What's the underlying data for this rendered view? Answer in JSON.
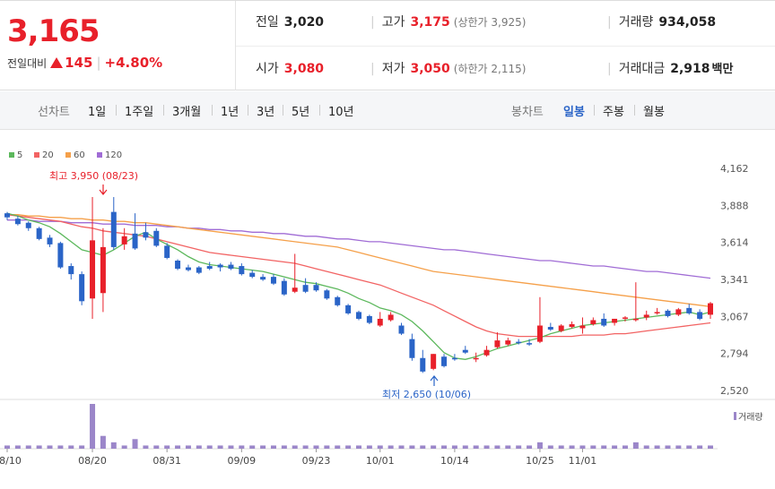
{
  "price": {
    "current": "3,165",
    "change_label": "전일대비",
    "change": "145",
    "change_pct": "+4.80%"
  },
  "summary": {
    "prev_close_label": "전일",
    "prev_close": "3,020",
    "high_label": "고가",
    "high": "3,175",
    "upper_limit": "(상한가 3,925)",
    "volume_label": "거래량",
    "volume": "934,058",
    "open_label": "시가",
    "open": "3,080",
    "low_label": "저가",
    "low": "3,050",
    "lower_limit": "(하한가 2,115)",
    "amount_label": "거래대금",
    "amount": "2,918",
    "amount_unit": "백만"
  },
  "tabs": {
    "line_label": "선차트",
    "line_items": [
      "1일",
      "1주일",
      "3개월",
      "1년",
      "3년",
      "5년",
      "10년"
    ],
    "candle_label": "봉차트",
    "candle_items": [
      "일봉",
      "주봉",
      "월봉"
    ],
    "active_candle": "일봉"
  },
  "colors": {
    "up": "#e8202a",
    "down": "#2a64c7",
    "ma5": "#5cb85c",
    "ma20": "#f26363",
    "ma60": "#f5a04a",
    "ma120": "#a06cd5",
    "volume": "#9b86c9"
  },
  "chart_data": {
    "type": "candlestick",
    "legend": [
      {
        "name": "5",
        "color": "#5cb85c"
      },
      {
        "name": "20",
        "color": "#f26363"
      },
      {
        "name": "60",
        "color": "#f5a04a"
      },
      {
        "name": "120",
        "color": "#a06cd5"
      }
    ],
    "y_ticks": [
      "4,162",
      "3,888",
      "3,614",
      "3,341",
      "3,067",
      "2,794",
      "2,520"
    ],
    "ylim": [
      2520,
      4162
    ],
    "x_ticks": [
      {
        "label": "08/10",
        "index": 0
      },
      {
        "label": "08/20",
        "index": 8
      },
      {
        "label": "08/31",
        "index": 15
      },
      {
        "label": "09/09",
        "index": 22
      },
      {
        "label": "09/23",
        "index": 29
      },
      {
        "label": "10/01",
        "index": 35
      },
      {
        "label": "10/14",
        "index": 42
      },
      {
        "label": "10/25",
        "index": 50
      },
      {
        "label": "11/01",
        "index": 54
      }
    ],
    "high_annotation": "최고 3,950 (08/23)",
    "low_annotation": "최저 2,650 (10/06)",
    "volume_legend": "거래량",
    "candles": [
      [
        3830,
        3840,
        3800,
        3780
      ],
      [
        3790,
        3810,
        3750,
        3740
      ],
      [
        3760,
        3770,
        3720,
        3700
      ],
      [
        3720,
        3730,
        3640,
        3630
      ],
      [
        3650,
        3670,
        3600,
        3580
      ],
      [
        3610,
        3620,
        3430,
        3420
      ],
      [
        3440,
        3460,
        3380,
        3340
      ],
      [
        3380,
        3400,
        3180,
        3150
      ],
      [
        3200,
        3950,
        3630,
        3050
      ],
      [
        3240,
        3720,
        3580,
        3100
      ],
      [
        3840,
        3950,
        3580,
        3560
      ],
      [
        3600,
        3720,
        3660,
        3560
      ],
      [
        3680,
        3830,
        3570,
        3560
      ],
      [
        3690,
        3760,
        3650,
        3630
      ],
      [
        3700,
        3720,
        3590,
        3580
      ],
      [
        3590,
        3610,
        3500,
        3490
      ],
      [
        3480,
        3490,
        3420,
        3410
      ],
      [
        3430,
        3450,
        3410,
        3400
      ],
      [
        3430,
        3440,
        3390,
        3380
      ],
      [
        3440,
        3470,
        3420,
        3410
      ],
      [
        3450,
        3460,
        3430,
        3400
      ],
      [
        3450,
        3470,
        3420,
        3410
      ],
      [
        3440,
        3460,
        3380,
        3370
      ],
      [
        3390,
        3410,
        3360,
        3350
      ],
      [
        3360,
        3380,
        3340,
        3330
      ],
      [
        3360,
        3380,
        3310,
        3300
      ],
      [
        3330,
        3350,
        3230,
        3220
      ],
      [
        3250,
        3530,
        3280,
        3240
      ],
      [
        3300,
        3350,
        3250,
        3240
      ],
      [
        3300,
        3320,
        3260,
        3250
      ],
      [
        3260,
        3270,
        3200,
        3190
      ],
      [
        3210,
        3220,
        3150,
        3140
      ],
      [
        3150,
        3160,
        3090,
        3080
      ],
      [
        3100,
        3110,
        3050,
        3040
      ],
      [
        3070,
        3080,
        3020,
        3010
      ],
      [
        3000,
        3100,
        3050,
        2990
      ],
      [
        3040,
        3100,
        3080,
        3030
      ],
      [
        3000,
        3020,
        2940,
        2930
      ],
      [
        2900,
        2940,
        2760,
        2740
      ],
      [
        2760,
        2820,
        2660,
        2650
      ],
      [
        2680,
        2790,
        2790,
        2670
      ],
      [
        2770,
        2790,
        2700,
        2690
      ],
      [
        2760,
        2790,
        2750,
        2740
      ],
      [
        2820,
        2850,
        2800,
        2790
      ],
      [
        2750,
        2800,
        2760,
        2730
      ],
      [
        2780,
        2850,
        2820,
        2770
      ],
      [
        2840,
        2950,
        2890,
        2830
      ],
      [
        2860,
        2910,
        2890,
        2850
      ],
      [
        2880,
        2900,
        2870,
        2860
      ],
      [
        2870,
        2900,
        2860,
        2850
      ],
      [
        2880,
        3210,
        3000,
        2870
      ],
      [
        2990,
        3020,
        2970,
        2960
      ],
      [
        2960,
        3010,
        3000,
        2950
      ],
      [
        2990,
        3030,
        3010,
        2980
      ],
      [
        2980,
        3060,
        3000,
        2940
      ],
      [
        3010,
        3060,
        3040,
        3000
      ],
      [
        3050,
        3090,
        3000,
        2990
      ],
      [
        3020,
        3050,
        3050,
        3000
      ],
      [
        3050,
        3070,
        3060,
        3030
      ],
      [
        3040,
        3320,
        3050,
        3030
      ],
      [
        3060,
        3110,
        3080,
        3040
      ],
      [
        3090,
        3130,
        3100,
        3080
      ],
      [
        3110,
        3120,
        3070,
        3060
      ],
      [
        3080,
        3130,
        3120,
        3070
      ],
      [
        3130,
        3160,
        3090,
        3080
      ],
      [
        3100,
        3120,
        3050,
        3040
      ],
      [
        3080,
        3175,
        3165,
        3050
      ]
    ],
    "ma5": [
      3830,
      3810,
      3780,
      3760,
      3730,
      3680,
      3620,
      3560,
      3540,
      3520,
      3560,
      3610,
      3660,
      3690,
      3640,
      3600,
      3560,
      3510,
      3470,
      3450,
      3440,
      3430,
      3420,
      3410,
      3400,
      3380,
      3360,
      3340,
      3320,
      3310,
      3290,
      3270,
      3240,
      3200,
      3170,
      3130,
      3110,
      3080,
      3030,
      2960,
      2880,
      2800,
      2760,
      2750,
      2770,
      2800,
      2830,
      2850,
      2870,
      2890,
      2910,
      2940,
      2960,
      2980,
      3000,
      3010,
      3020,
      3030,
      3040,
      3050,
      3060,
      3070,
      3080,
      3090,
      3100,
      3080,
      3100
    ],
    "ma20": [
      3820,
      3810,
      3800,
      3790,
      3780,
      3770,
      3750,
      3730,
      3720,
      3700,
      3690,
      3680,
      3670,
      3660,
      3640,
      3620,
      3600,
      3580,
      3560,
      3540,
      3530,
      3520,
      3510,
      3500,
      3490,
      3480,
      3470,
      3460,
      3440,
      3420,
      3400,
      3380,
      3360,
      3340,
      3320,
      3300,
      3270,
      3240,
      3210,
      3180,
      3150,
      3110,
      3070,
      3030,
      2990,
      2960,
      2940,
      2930,
      2920,
      2920,
      2920,
      2920,
      2920,
      2920,
      2930,
      2930,
      2930,
      2940,
      2940,
      2950,
      2960,
      2970,
      2980,
      2990,
      3000,
      3010,
      3020
    ],
    "ma60": [
      3820,
      3820,
      3810,
      3810,
      3800,
      3800,
      3790,
      3790,
      3780,
      3780,
      3770,
      3770,
      3760,
      3760,
      3750,
      3740,
      3730,
      3720,
      3710,
      3700,
      3690,
      3680,
      3670,
      3660,
      3650,
      3640,
      3630,
      3620,
      3610,
      3600,
      3590,
      3580,
      3560,
      3540,
      3520,
      3500,
      3480,
      3460,
      3440,
      3420,
      3400,
      3390,
      3380,
      3370,
      3360,
      3350,
      3340,
      3330,
      3320,
      3310,
      3300,
      3290,
      3280,
      3270,
      3260,
      3250,
      3240,
      3230,
      3220,
      3210,
      3200,
      3190,
      3180,
      3170,
      3160,
      3150,
      3140
    ],
    "ma120": [
      3780,
      3780,
      3780,
      3770,
      3770,
      3770,
      3760,
      3760,
      3760,
      3750,
      3750,
      3750,
      3740,
      3740,
      3740,
      3730,
      3730,
      3720,
      3720,
      3710,
      3710,
      3700,
      3700,
      3690,
      3690,
      3680,
      3680,
      3670,
      3660,
      3660,
      3650,
      3640,
      3640,
      3630,
      3620,
      3620,
      3610,
      3600,
      3590,
      3580,
      3570,
      3560,
      3560,
      3550,
      3540,
      3530,
      3520,
      3510,
      3500,
      3490,
      3480,
      3480,
      3470,
      3460,
      3450,
      3440,
      3440,
      3430,
      3420,
      3410,
      3400,
      3400,
      3390,
      3380,
      3370,
      3360,
      3350
    ],
    "volume": [
      1,
      1,
      1,
      1,
      1,
      1,
      1,
      1,
      14,
      4,
      2,
      1,
      3,
      1,
      1,
      1,
      1,
      1,
      1,
      1,
      1,
      1,
      1,
      1,
      1,
      1,
      1,
      1,
      1,
      1,
      1,
      1,
      1,
      1,
      1,
      1,
      1,
      1,
      1,
      1,
      1,
      1,
      1,
      1,
      1,
      1,
      1,
      1,
      1,
      1,
      2,
      1,
      1,
      1,
      1,
      1,
      1,
      1,
      1,
      2,
      1,
      1,
      1,
      1,
      1,
      1,
      1
    ]
  }
}
